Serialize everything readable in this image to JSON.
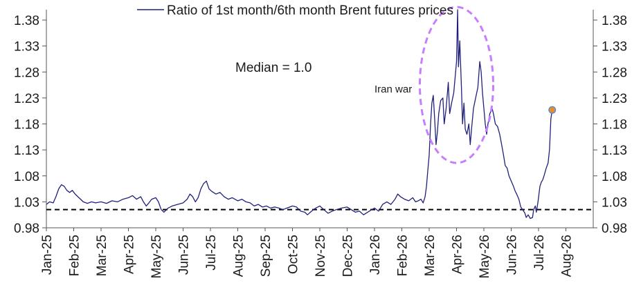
{
  "chart_data": {
    "type": "line",
    "title": "",
    "xlabel": "",
    "ylabel": "",
    "ylim": [
      0.98,
      1.4
    ],
    "yticks": [
      "0.98",
      "1.03",
      "1.08",
      "1.13",
      "1.18",
      "1.23",
      "1.28",
      "1.33",
      "1.38"
    ],
    "dual_y_axis": true,
    "x_range_months": [
      0,
      20
    ],
    "x_tick_labels": [
      "Jan-25",
      "Feb-25",
      "Mar-25",
      "Apr-25",
      "May-25",
      "Jun-25",
      "Jul-25",
      "Aug-25",
      "Sep-25",
      "Oct-25",
      "Nov-25",
      "Dec-25",
      "Jan-26",
      "Feb-26",
      "Mar-26",
      "Apr-26",
      "May-26",
      "Jun-26",
      "Jul-26",
      "Aug-26"
    ],
    "legend": {
      "label": "Ratio of 1st month/6th month Brent futures prices",
      "placement": "top-center"
    },
    "series": [
      {
        "name": "Ratio of 1st month/6th month Brent futures prices",
        "color": "#1f1f7a",
        "points": [
          [
            0.0,
            1.025
          ],
          [
            0.12,
            1.03
          ],
          [
            0.25,
            1.028
          ],
          [
            0.35,
            1.04
          ],
          [
            0.45,
            1.055
          ],
          [
            0.55,
            1.063
          ],
          [
            0.65,
            1.06
          ],
          [
            0.75,
            1.052
          ],
          [
            0.85,
            1.048
          ],
          [
            0.95,
            1.052
          ],
          [
            1.05,
            1.045
          ],
          [
            1.15,
            1.04
          ],
          [
            1.25,
            1.035
          ],
          [
            1.35,
            1.03
          ],
          [
            1.5,
            1.027
          ],
          [
            1.65,
            1.03
          ],
          [
            1.8,
            1.028
          ],
          [
            2.0,
            1.03
          ],
          [
            2.2,
            1.027
          ],
          [
            2.4,
            1.032
          ],
          [
            2.6,
            1.03
          ],
          [
            2.8,
            1.035
          ],
          [
            3.0,
            1.038
          ],
          [
            3.15,
            1.042
          ],
          [
            3.3,
            1.035
          ],
          [
            3.45,
            1.04
          ],
          [
            3.55,
            1.03
          ],
          [
            3.65,
            1.022
          ],
          [
            3.75,
            1.028
          ],
          [
            3.85,
            1.035
          ],
          [
            4.0,
            1.038
          ],
          [
            4.1,
            1.03
          ],
          [
            4.2,
            1.015
          ],
          [
            4.3,
            1.01
          ],
          [
            4.45,
            1.018
          ],
          [
            4.6,
            1.022
          ],
          [
            4.8,
            1.025
          ],
          [
            5.0,
            1.028
          ],
          [
            5.15,
            1.035
          ],
          [
            5.25,
            1.045
          ],
          [
            5.35,
            1.04
          ],
          [
            5.45,
            1.03
          ],
          [
            5.55,
            1.038
          ],
          [
            5.65,
            1.055
          ],
          [
            5.75,
            1.065
          ],
          [
            5.85,
            1.07
          ],
          [
            5.95,
            1.055
          ],
          [
            6.05,
            1.05
          ],
          [
            6.2,
            1.045
          ],
          [
            6.35,
            1.048
          ],
          [
            6.5,
            1.04
          ],
          [
            6.65,
            1.035
          ],
          [
            6.8,
            1.038
          ],
          [
            7.0,
            1.032
          ],
          [
            7.15,
            1.035
          ],
          [
            7.3,
            1.03
          ],
          [
            7.45,
            1.028
          ],
          [
            7.6,
            1.022
          ],
          [
            7.75,
            1.025
          ],
          [
            7.9,
            1.02
          ],
          [
            8.05,
            1.022
          ],
          [
            8.2,
            1.018
          ],
          [
            8.35,
            1.02
          ],
          [
            8.5,
            1.018
          ],
          [
            8.65,
            1.015
          ],
          [
            8.8,
            1.018
          ],
          [
            9.0,
            1.022
          ],
          [
            9.15,
            1.02
          ],
          [
            9.3,
            1.012
          ],
          [
            9.45,
            1.01
          ],
          [
            9.55,
            1.005
          ],
          [
            9.7,
            1.012
          ],
          [
            9.85,
            1.018
          ],
          [
            10.0,
            1.022
          ],
          [
            10.15,
            1.015
          ],
          [
            10.3,
            1.008
          ],
          [
            10.45,
            1.012
          ],
          [
            10.6,
            1.015
          ],
          [
            10.8,
            1.018
          ],
          [
            11.0,
            1.02
          ],
          [
            11.15,
            1.015
          ],
          [
            11.3,
            1.01
          ],
          [
            11.45,
            1.012
          ],
          [
            11.6,
            1.005
          ],
          [
            11.75,
            1.01
          ],
          [
            11.9,
            1.015
          ],
          [
            12.0,
            1.018
          ],
          [
            12.15,
            1.012
          ],
          [
            12.3,
            1.025
          ],
          [
            12.45,
            1.03
          ],
          [
            12.6,
            1.025
          ],
          [
            12.75,
            1.035
          ],
          [
            12.85,
            1.045
          ],
          [
            12.95,
            1.04
          ],
          [
            13.1,
            1.035
          ],
          [
            13.25,
            1.032
          ],
          [
            13.4,
            1.038
          ],
          [
            13.5,
            1.03
          ],
          [
            13.6,
            1.032
          ],
          [
            13.7,
            1.035
          ],
          [
            13.78,
            1.028
          ],
          [
            13.85,
            1.04
          ],
          [
            13.9,
            1.06
          ],
          [
            13.95,
            1.09
          ],
          [
            14.0,
            1.12
          ],
          [
            14.05,
            1.18
          ],
          [
            14.1,
            1.22
          ],
          [
            14.15,
            1.235
          ],
          [
            14.2,
            1.19
          ],
          [
            14.25,
            1.14
          ],
          [
            14.3,
            1.165
          ],
          [
            14.35,
            1.2
          ],
          [
            14.42,
            1.225
          ],
          [
            14.5,
            1.23
          ],
          [
            14.55,
            1.18
          ],
          [
            14.62,
            1.21
          ],
          [
            14.7,
            1.26
          ],
          [
            14.75,
            1.2
          ],
          [
            14.82,
            1.22
          ],
          [
            14.9,
            1.24
          ],
          [
            14.95,
            1.27
          ],
          [
            15.0,
            1.3
          ],
          [
            15.04,
            1.4
          ],
          [
            15.07,
            1.29
          ],
          [
            15.12,
            1.34
          ],
          [
            15.18,
            1.25
          ],
          [
            15.22,
            1.18
          ],
          [
            15.27,
            1.22
          ],
          [
            15.32,
            1.17
          ],
          [
            15.38,
            1.16
          ],
          [
            15.45,
            1.18
          ],
          [
            15.5,
            1.14
          ],
          [
            15.55,
            1.17
          ],
          [
            15.62,
            1.21
          ],
          [
            15.7,
            1.23
          ],
          [
            15.78,
            1.25
          ],
          [
            15.85,
            1.3
          ],
          [
            15.9,
            1.28
          ],
          [
            15.95,
            1.24
          ],
          [
            16.0,
            1.21
          ],
          [
            16.05,
            1.18
          ],
          [
            16.1,
            1.16
          ],
          [
            16.15,
            1.18
          ],
          [
            16.22,
            1.2
          ],
          [
            16.3,
            1.21
          ],
          [
            16.35,
            1.2
          ],
          [
            16.42,
            1.18
          ],
          [
            16.5,
            1.175
          ],
          [
            16.58,
            1.16
          ],
          [
            16.65,
            1.14
          ],
          [
            16.72,
            1.12
          ],
          [
            16.78,
            1.1
          ],
          [
            16.85,
            1.095
          ],
          [
            16.92,
            1.08
          ],
          [
            17.0,
            1.07
          ],
          [
            17.08,
            1.06
          ],
          [
            17.15,
            1.05
          ],
          [
            17.2,
            1.045
          ],
          [
            17.28,
            1.035
          ],
          [
            17.35,
            1.02
          ],
          [
            17.42,
            1.015
          ],
          [
            17.5,
            1.008
          ],
          [
            17.55,
            1.0
          ],
          [
            17.62,
            1.005
          ],
          [
            17.7,
            0.998
          ],
          [
            17.78,
            1.0
          ],
          [
            17.82,
            1.015
          ],
          [
            17.88,
            1.022
          ],
          [
            17.92,
            1.01
          ],
          [
            17.98,
            1.03
          ],
          [
            18.05,
            1.06
          ],
          [
            18.1,
            1.068
          ],
          [
            18.15,
            1.072
          ],
          [
            18.2,
            1.08
          ],
          [
            18.28,
            1.095
          ],
          [
            18.35,
            1.105
          ],
          [
            18.4,
            1.13
          ],
          [
            18.45,
            1.19
          ],
          [
            18.5,
            1.207
          ]
        ]
      }
    ],
    "reference_lines": [
      {
        "label": "Median = 1.0",
        "value": 1.015,
        "style": "dashed",
        "color": "#000000"
      }
    ],
    "annotations": [
      {
        "text": "Median = 1.0"
      },
      {
        "text": "Iran war"
      }
    ],
    "highlight_point": {
      "x": 18.5,
      "y": 1.207,
      "color": "#f08a24",
      "stroke": "#4a90e2"
    },
    "ellipse_highlight": {
      "color": "#c77dff",
      "style": "dashed"
    }
  }
}
